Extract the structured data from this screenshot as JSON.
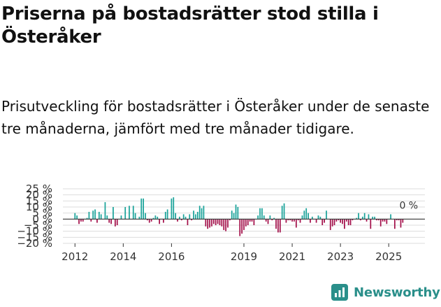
{
  "title": "Priserna på bostadsrätter stod stilla i Österåker",
  "subtitle": "Prisutveckling för bostadsrätter i Österåker under de senaste tre månaderna, jämfört med tre månader tidigare.",
  "logo_text": "Newsworthy",
  "colors": {
    "positive": "#1aa39a",
    "negative": "#a3104a",
    "grid": "#dddddd",
    "zero": "#333333",
    "text": "#333333",
    "brand": "#2a8f8a"
  },
  "chart_data": {
    "type": "bar",
    "title": "Prisutveckling för bostadsrätter i Österåker",
    "ylabel": "",
    "xlabel": "",
    "ylim": [
      -20,
      25
    ],
    "yticks": [
      25,
      20,
      15,
      10,
      5,
      0,
      -5,
      -10,
      -15,
      -20
    ],
    "ytick_labels": [
      "25 %",
      "20 %",
      "15 %",
      "10 %",
      "5 %",
      "0 %",
      "−5 %",
      "−10 %",
      "−15 %",
      "−20 %"
    ],
    "xlim": [
      2011.5,
      2026.5
    ],
    "xticks": [
      2012,
      2014,
      2016,
      2019,
      2021,
      2023,
      2025
    ],
    "xtick_labels": [
      "2012",
      "2014",
      "2016",
      "2019",
      "2021",
      "2023",
      "2025"
    ],
    "annotation": {
      "text": "0 %",
      "x": 2025.5,
      "y": 0
    },
    "x": [
      2012.0,
      2012.083,
      2012.167,
      2012.25,
      2012.333,
      2012.417,
      2012.5,
      2012.583,
      2012.667,
      2012.75,
      2012.833,
      2012.917,
      2013.0,
      2013.083,
      2013.167,
      2013.25,
      2013.333,
      2013.417,
      2013.5,
      2013.583,
      2013.667,
      2013.75,
      2013.833,
      2013.917,
      2014.0,
      2014.083,
      2014.167,
      2014.25,
      2014.333,
      2014.417,
      2014.5,
      2014.583,
      2014.667,
      2014.75,
      2014.833,
      2014.917,
      2015.0,
      2015.083,
      2015.167,
      2015.25,
      2015.333,
      2015.417,
      2015.5,
      2015.583,
      2015.667,
      2015.75,
      2015.833,
      2015.917,
      2016.0,
      2016.083,
      2016.167,
      2016.25,
      2016.333,
      2016.417,
      2016.5,
      2016.583,
      2016.667,
      2016.75,
      2016.833,
      2016.917,
      2017.0,
      2017.083,
      2017.167,
      2017.25,
      2017.333,
      2017.417,
      2017.5,
      2017.583,
      2017.667,
      2017.75,
      2017.833,
      2017.917,
      2018.0,
      2018.083,
      2018.167,
      2018.25,
      2018.333,
      2018.417,
      2018.5,
      2018.583,
      2018.667,
      2018.75,
      2018.833,
      2018.917,
      2019.0,
      2019.083,
      2019.167,
      2019.25,
      2019.333,
      2019.417,
      2019.5,
      2019.583,
      2019.667,
      2019.75,
      2019.833,
      2019.917,
      2020.0,
      2020.083,
      2020.167,
      2020.25,
      2020.333,
      2020.417,
      2020.5,
      2020.583,
      2020.667,
      2020.75,
      2020.833,
      2020.917,
      2021.0,
      2021.083,
      2021.167,
      2021.25,
      2021.333,
      2021.417,
      2021.5,
      2021.583,
      2021.667,
      2021.75,
      2021.833,
      2021.917,
      2022.0,
      2022.083,
      2022.167,
      2022.25,
      2022.333,
      2022.417,
      2022.5,
      2022.583,
      2022.667,
      2022.75,
      2022.833,
      2022.917,
      2023.0,
      2023.083,
      2023.167,
      2023.25,
      2023.333,
      2023.417,
      2023.5,
      2023.583,
      2023.667,
      2023.75,
      2023.833,
      2023.917,
      2024.0,
      2024.083,
      2024.167,
      2024.25,
      2024.333,
      2024.417,
      2024.5,
      2024.583,
      2024.667,
      2024.75,
      2024.833,
      2024.917,
      2025.0,
      2025.083,
      2025.167,
      2025.25,
      2025.333,
      2025.417,
      2025.5,
      2025.583,
      2025.667
    ],
    "values": [
      5,
      3,
      -4,
      -2,
      -2,
      0,
      1,
      6,
      -2,
      7,
      8,
      -3,
      6,
      4,
      0,
      14,
      3,
      -3,
      -4,
      10,
      -6,
      -5,
      0,
      3,
      0,
      10,
      0,
      11,
      0,
      11,
      5,
      0,
      2,
      17,
      17,
      5,
      -1,
      -3,
      -2,
      1,
      3,
      2,
      -4,
      0,
      -3,
      6,
      8,
      0,
      17,
      18,
      5,
      -2,
      2,
      -1,
      4,
      2,
      -5,
      4,
      -1,
      7,
      4,
      6,
      11,
      9,
      11,
      -6,
      -8,
      -7,
      -6,
      -4,
      -5,
      -4,
      -5,
      -6,
      -9,
      -10,
      -7,
      -1,
      7,
      5,
      12,
      10,
      -14,
      -12,
      -9,
      -6,
      -5,
      -2,
      -2,
      -5,
      0,
      3,
      9,
      9,
      3,
      -2,
      -4,
      3,
      -1,
      1,
      -8,
      -11,
      -11,
      11,
      13,
      -3,
      -1,
      -1,
      -2,
      -2,
      -7,
      -1,
      -3,
      3,
      7,
      9,
      5,
      -3,
      2,
      0,
      -3,
      3,
      2,
      -5,
      -3,
      7,
      0,
      -9,
      -6,
      -5,
      -2,
      -1,
      -3,
      -4,
      -8,
      -2,
      -5,
      -5,
      -1,
      0,
      1,
      5,
      -1,
      2,
      5,
      -2,
      4,
      -8,
      2,
      2,
      -1,
      -1,
      -6,
      -2,
      -2,
      -4,
      0,
      4,
      0,
      -8,
      -1,
      -1,
      -7,
      -3,
      0
    ]
  }
}
